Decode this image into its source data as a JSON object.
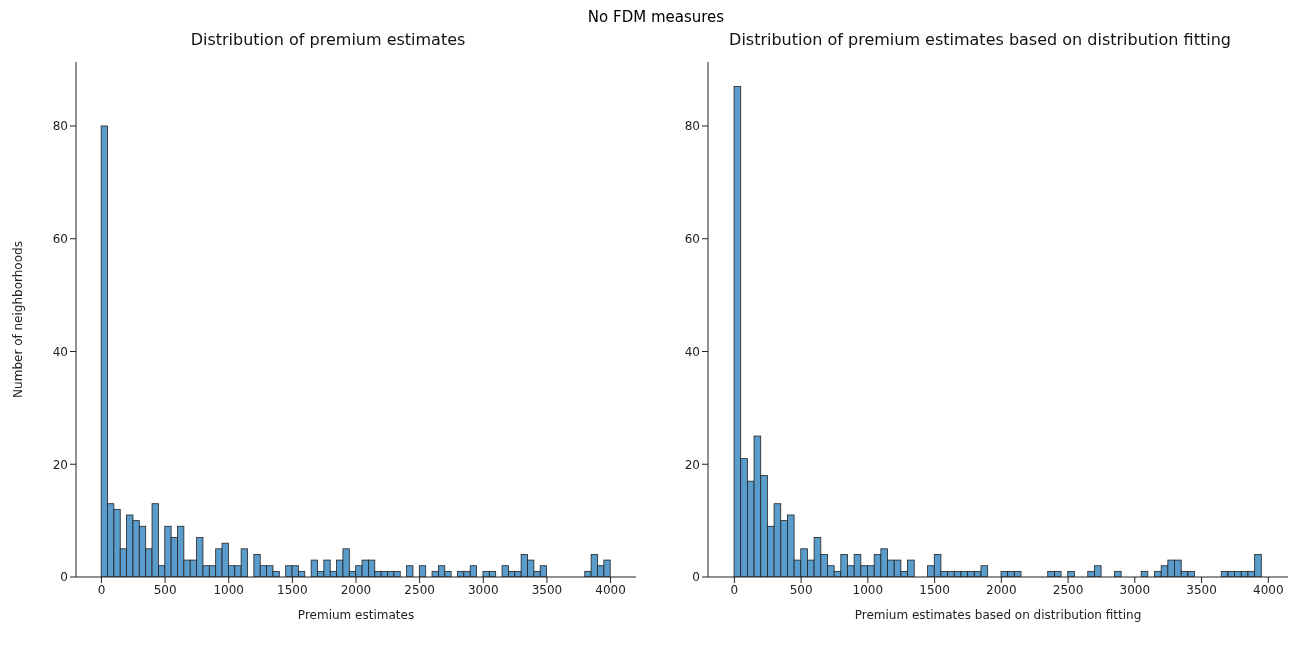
{
  "chart_data": [
    {
      "type": "histogram",
      "title": "Distribution of premium estimates",
      "xlabel": "Premium estimates",
      "ylabel": "Number of neighborhoods",
      "annotations": [
        "No FDM measures"
      ],
      "color": "#5a9ccc",
      "bins": [
        0,
        50,
        100,
        150,
        200,
        250,
        300,
        350,
        400,
        450,
        500,
        550,
        600,
        650,
        700,
        750,
        800,
        850,
        900,
        950,
        1000,
        1050,
        1100,
        1150,
        1200,
        1250,
        1300,
        1350,
        1400,
        1450,
        1500,
        1550,
        1600,
        1650,
        1700,
        1750,
        1800,
        1850,
        1900,
        1950,
        2000,
        2050,
        2100,
        2150,
        2200,
        2250,
        2300,
        2350,
        2400,
        2450,
        2500,
        2550,
        2600,
        2650,
        2700,
        2750,
        2800,
        2850,
        2900,
        2950,
        3000,
        3050,
        3100,
        3150,
        3200,
        3250,
        3300,
        3350,
        3400,
        3450,
        3500,
        3550,
        3600,
        3650,
        3700,
        3750,
        3800,
        3850,
        3900,
        3950,
        4000
      ],
      "values": [
        80,
        13,
        12,
        5,
        11,
        10,
        9,
        5,
        13,
        2,
        9,
        7,
        9,
        3,
        3,
        7,
        2,
        2,
        5,
        6,
        2,
        2,
        5,
        0,
        4,
        2,
        2,
        1,
        0,
        2,
        2,
        1,
        0,
        3,
        1,
        3,
        1,
        3,
        5,
        1,
        2,
        3,
        3,
        1,
        1,
        1,
        1,
        0,
        2,
        0,
        2,
        0,
        1,
        2,
        1,
        0,
        1,
        1,
        2,
        0,
        1,
        1,
        0,
        2,
        1,
        1,
        4,
        3,
        1,
        2,
        0,
        0,
        0,
        0,
        0,
        0,
        1,
        4,
        2,
        3
      ],
      "xlim": [
        -200,
        4200
      ],
      "xticks": [
        0,
        500,
        1000,
        1500,
        2000,
        2500,
        3000,
        3500,
        4000
      ],
      "ylim": [
        0,
        91.35
      ],
      "yticks": [
        0,
        20,
        40,
        60,
        80
      ],
      "grid": false,
      "legend": false
    },
    {
      "type": "histogram",
      "title": "Distribution of premium estimates based on distribution fitting",
      "xlabel": "Premium estimates based on distribution fitting",
      "color": "#5a9ccc",
      "bins": [
        0,
        50,
        100,
        150,
        200,
        250,
        300,
        350,
        400,
        450,
        500,
        550,
        600,
        650,
        700,
        750,
        800,
        850,
        900,
        950,
        1000,
        1050,
        1100,
        1150,
        1200,
        1250,
        1300,
        1350,
        1400,
        1450,
        1500,
        1550,
        1600,
        1650,
        1700,
        1750,
        1800,
        1850,
        1900,
        1950,
        2000,
        2050,
        2100,
        2150,
        2200,
        2250,
        2300,
        2350,
        2400,
        2450,
        2500,
        2550,
        2600,
        2650,
        2700,
        2750,
        2800,
        2850,
        2900,
        2950,
        3000,
        3050,
        3100,
        3150,
        3200,
        3250,
        3300,
        3350,
        3400,
        3450,
        3500,
        3550,
        3600,
        3650,
        3700,
        3750,
        3800,
        3850,
        3900,
        3950
      ],
      "values": [
        87,
        21,
        17,
        25,
        18,
        9,
        13,
        10,
        11,
        3,
        5,
        3,
        7,
        4,
        2,
        1,
        4,
        2,
        4,
        2,
        2,
        4,
        5,
        3,
        3,
        1,
        3,
        0,
        0,
        2,
        4,
        1,
        1,
        1,
        1,
        1,
        1,
        2,
        0,
        0,
        1,
        1,
        1,
        0,
        0,
        0,
        0,
        1,
        1,
        0,
        1,
        0,
        0,
        1,
        2,
        0,
        0,
        1,
        0,
        0,
        0,
        1,
        0,
        1,
        2,
        3,
        3,
        1,
        1,
        0,
        0,
        0,
        0,
        1,
        1,
        1,
        1,
        1,
        4
      ],
      "xlim": [
        -197.5,
        4147.5
      ],
      "xticks": [
        0,
        500,
        1000,
        1500,
        2000,
        2500,
        3000,
        3500,
        4000
      ],
      "ylim": [
        0,
        91.35
      ],
      "yticks": [
        0,
        20,
        40,
        60,
        80
      ],
      "grid": false,
      "legend": false
    }
  ]
}
